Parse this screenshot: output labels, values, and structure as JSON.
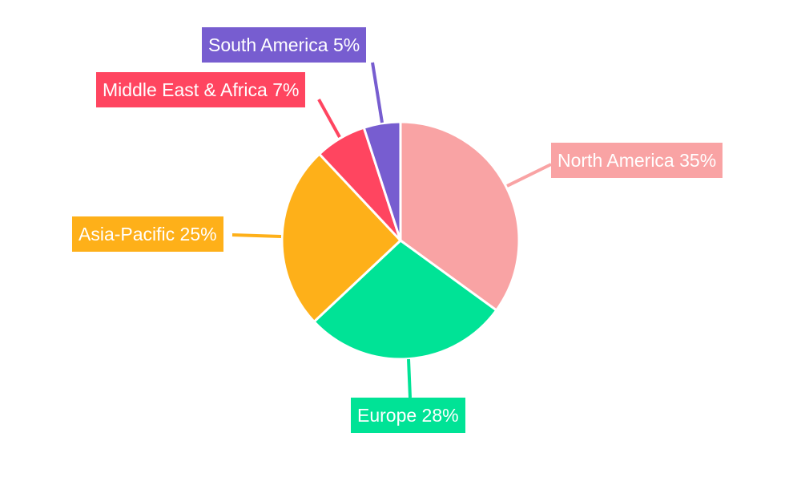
{
  "chart_data": {
    "type": "pie",
    "start_angle": "12 o'clock, clockwise",
    "slices": [
      {
        "name": "North America",
        "value": 35,
        "label": "North America 35%",
        "color": "#f9a3a4"
      },
      {
        "name": "Europe",
        "value": 28,
        "label": "Europe 28%",
        "color": "#00e396"
      },
      {
        "name": "Asia-Pacific",
        "value": 25,
        "label": "Asia-Pacific 25%",
        "color": "#feb019"
      },
      {
        "name": "Middle East & Africa",
        "value": 7,
        "label": "Middle East & Africa 7%",
        "color": "#ff4560"
      },
      {
        "name": "South America",
        "value": 5,
        "label": "South America 5%",
        "color": "#775dd0"
      }
    ],
    "legend": "none",
    "slice_border_color": "#ffffff"
  }
}
